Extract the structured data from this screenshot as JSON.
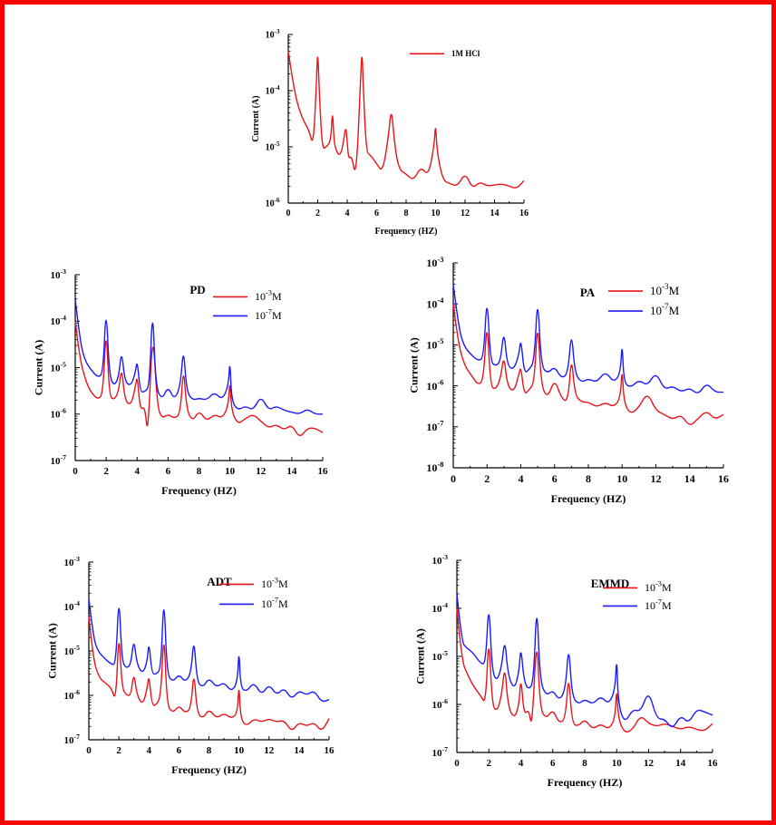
{
  "colors": {
    "frame": "#ff0000",
    "hcl": "#e8141a",
    "conc_high": "#e8141a",
    "conc_low": "#1a1aff"
  },
  "chart_data": [
    {
      "id": "blank",
      "type": "line",
      "title": "",
      "xlabel": "Frequency (HZ)",
      "ylabel": "Current (A)",
      "xlim": [
        0,
        16
      ],
      "xticks": [
        0,
        2,
        4,
        6,
        8,
        10,
        12,
        14,
        16
      ],
      "ylog": true,
      "ylim_exp": [
        -6,
        -3
      ],
      "legend_position": "top-right",
      "series": [
        {
          "name": "1M HCl",
          "color": "#e8141a",
          "x": [
            0,
            0.3,
            0.6,
            1,
            1.4,
            1.7,
            1.9,
            2,
            2.1,
            2.3,
            2.6,
            2.9,
            3,
            3.1,
            3.3,
            3.5,
            3.7,
            3.9,
            4,
            4.1,
            4.3,
            4.6,
            4.9,
            5,
            5.1,
            5.3,
            5.6,
            6,
            6.4,
            6.8,
            7,
            7.2,
            7.5,
            8,
            8.5,
            9,
            9.5,
            9.9,
            10,
            10.1,
            10.5,
            11,
            11.5,
            12,
            12.5,
            13,
            13.5,
            14,
            14.5,
            15,
            15.5,
            16
          ],
          "y": [
            0.0005,
            0.00015,
            6e-05,
            3e-05,
            2e-05,
            1e-05,
            0.00012,
            0.0006,
            0.0001,
            9e-06,
            1e-05,
            1.3e-05,
            5e-05,
            1.2e-05,
            8e-06,
            7e-06,
            1e-05,
            2.5e-05,
            1.2e-05,
            6e-06,
            7e-06,
            2.7e-06,
            0.00012,
            0.0006,
            0.0001,
            8e-06,
            7e-06,
            5e-06,
            3.5e-06,
            1.5e-05,
            5.3e-05,
            1.2e-05,
            4e-06,
            3.3e-06,
            2.5e-06,
            4.5e-06,
            3e-06,
            1e-05,
            2.8e-05,
            8e-06,
            2.5e-06,
            2.2e-06,
            2e-06,
            3.5e-06,
            1.8e-06,
            2.4e-06,
            2e-06,
            2.1e-06,
            2.2e-06,
            2e-06,
            1.8e-06,
            2.5e-06
          ]
        }
      ]
    },
    {
      "id": "pd",
      "type": "line",
      "title": "PD",
      "xlabel": "Frequency (HZ)",
      "ylabel": "Current (A)",
      "xlim": [
        0,
        16
      ],
      "xticks": [
        0,
        2,
        4,
        6,
        8,
        10,
        12,
        14,
        16
      ],
      "ylog": true,
      "ylim_exp": [
        -7,
        -3
      ],
      "legend_position": "top-right",
      "series": [
        {
          "name": "10^-3M",
          "color": "#e8141a",
          "x": [
            0,
            0.3,
            0.7,
            1,
            1.5,
            1.8,
            2,
            2.2,
            2.5,
            2.8,
            3,
            3.2,
            3.6,
            3.9,
            4,
            4.2,
            4.5,
            4.7,
            5,
            5.3,
            5.6,
            6,
            6.4,
            6.8,
            7,
            7.2,
            7.6,
            8,
            8.5,
            9,
            9.5,
            9.9,
            10,
            10.1,
            10.5,
            11,
            11.5,
            12,
            12.5,
            13,
            13.5,
            14,
            14.5,
            15,
            15.5,
            16
          ],
          "y": [
            0.0001,
            1.5e-05,
            5e-06,
            3e-06,
            2e-06,
            3e-06,
            9e-05,
            2.5e-06,
            2e-06,
            3e-06,
            1.1e-05,
            2e-06,
            1.5e-06,
            4e-06,
            7e-06,
            1.2e-06,
            1.5e-06,
            3e-07,
            9e-05,
            1.5e-06,
            8e-07,
            1e-06,
            8e-07,
            1e-06,
            1.2e-05,
            1.2e-06,
            7e-07,
            1.2e-06,
            7e-07,
            1e-06,
            8e-07,
            1.5e-06,
            6e-06,
            1.2e-06,
            6e-07,
            8e-07,
            1e-06,
            7e-07,
            5e-07,
            6e-07,
            4.5e-07,
            6e-07,
            3e-07,
            5e-07,
            5e-07,
            4e-07
          ]
        },
        {
          "name": "10^-7M",
          "color": "#1a1aff",
          "x": [
            0,
            0.3,
            0.6,
            1,
            1.5,
            1.8,
            2,
            2.2,
            2.5,
            2.8,
            3,
            3.2,
            3.6,
            3.9,
            4,
            4.2,
            4.5,
            4.8,
            5,
            5.2,
            5.6,
            6,
            6.4,
            6.8,
            7,
            7.2,
            7.6,
            8,
            8.5,
            9,
            9.5,
            9.9,
            10,
            10.1,
            10.5,
            11,
            11.5,
            12,
            12.5,
            13,
            13.5,
            14,
            14.5,
            15,
            15.5,
            16
          ],
          "y": [
            0.0003,
            4e-05,
            1.5e-05,
            9e-06,
            6e-06,
            8e-06,
            0.00025,
            7e-06,
            4e-06,
            6e-06,
            2.5e-05,
            5e-06,
            4e-06,
            8e-06,
            1.5e-05,
            3e-06,
            3e-06,
            4e-06,
            0.00026,
            4e-06,
            2e-06,
            4e-06,
            2e-06,
            4e-06,
            3e-05,
            3e-06,
            2e-06,
            2.2e-06,
            2e-06,
            3e-06,
            2e-06,
            4e-06,
            1.6e-05,
            2e-06,
            1.2e-06,
            1.5e-06,
            1.2e-06,
            2.5e-06,
            1.2e-06,
            1.5e-06,
            1.2e-06,
            1.1e-06,
            1e-06,
            1.3e-06,
            1e-06,
            1e-06
          ]
        }
      ]
    },
    {
      "id": "pa",
      "type": "line",
      "title": "PA",
      "xlabel": "Frequency (HZ)",
      "ylabel": "Current (A)",
      "xlim": [
        0,
        16
      ],
      "xticks": [
        0,
        2,
        4,
        6,
        8,
        10,
        12,
        14,
        16
      ],
      "ylog": true,
      "ylim_exp": [
        -8,
        -3
      ],
      "legend_position": "top-right",
      "series": [
        {
          "name": "10^-3M",
          "color": "#e8141a",
          "x": [
            0,
            0.3,
            0.7,
            1,
            1.5,
            1.8,
            2,
            2.2,
            2.5,
            2.8,
            3,
            3.2,
            3.6,
            3.9,
            4,
            4.2,
            4.5,
            4.8,
            5,
            5.2,
            5.6,
            6,
            6.4,
            6.8,
            7,
            7.2,
            7.6,
            8,
            8.5,
            9,
            9.5,
            9.9,
            10,
            10.1,
            10.5,
            11,
            11.5,
            12,
            12.5,
            13,
            13.5,
            14,
            14.5,
            15,
            15.5,
            16
          ],
          "y": [
            0.0001,
            1e-05,
            3e-06,
            2e-06,
            1e-06,
            1.5e-06,
            5e-05,
            1e-06,
            8e-07,
            1.5e-06,
            6e-06,
            1e-06,
            7e-07,
            2e-06,
            3e-06,
            6e-07,
            8e-07,
            1.2e-06,
            5e-05,
            1e-06,
            5e-07,
            1.5e-06,
            5e-07,
            4e-07,
            6e-06,
            6e-07,
            4e-07,
            4e-07,
            3e-07,
            4e-07,
            3e-07,
            5e-07,
            3e-06,
            4e-07,
            2e-07,
            3e-07,
            7e-07,
            2.5e-07,
            2e-07,
            1.5e-07,
            2e-07,
            1e-07,
            1.6e-07,
            2.5e-07,
            1.5e-07,
            2e-07
          ]
        },
        {
          "name": "10^-7M",
          "color": "#1a1aff",
          "x": [
            0,
            0.3,
            0.6,
            1,
            1.5,
            1.8,
            2,
            2.2,
            2.5,
            2.8,
            3,
            3.2,
            3.6,
            3.9,
            4,
            4.2,
            4.5,
            4.8,
            5,
            5.2,
            5.6,
            6,
            6.4,
            6.8,
            7,
            7.2,
            7.6,
            8,
            8.5,
            9,
            9.5,
            9.9,
            10,
            10.1,
            10.5,
            11,
            11.5,
            12,
            12.5,
            13,
            13.5,
            14,
            14.5,
            15,
            15.5,
            16
          ],
          "y": [
            0.0003,
            3e-05,
            1e-05,
            6e-06,
            4e-06,
            5e-06,
            0.0002,
            4e-06,
            3e-06,
            4e-06,
            2.5e-05,
            3e-06,
            2.5e-06,
            6e-06,
            1.5e-05,
            2e-06,
            2.5e-06,
            4e-06,
            0.0002,
            3e-06,
            2e-06,
            3e-06,
            1.5e-06,
            2e-06,
            2.5e-05,
            2e-06,
            1.2e-06,
            1.5e-06,
            1.2e-06,
            2.3e-06,
            1.2e-06,
            2e-06,
            1.3e-05,
            1.2e-06,
            9e-07,
            1.4e-06,
            1e-06,
            2.2e-06,
            8e-07,
            1e-06,
            7e-07,
            9e-07,
            6e-07,
            1.2e-06,
            7e-07,
            7e-07
          ]
        }
      ]
    },
    {
      "id": "adt",
      "type": "line",
      "title": "ADT",
      "xlabel": "Frequency (HZ)",
      "ylabel": "Current (A)",
      "xlim": [
        0,
        16
      ],
      "xticks": [
        0,
        2,
        4,
        6,
        8,
        10,
        12,
        14,
        16
      ],
      "ylog": true,
      "ylim_exp": [
        -7,
        -3
      ],
      "legend_position": "top-right",
      "series": [
        {
          "name": "10^-3M",
          "color": "#e8141a",
          "x": [
            0,
            0.3,
            0.7,
            1,
            1.5,
            1.8,
            2,
            2.2,
            2.5,
            2.8,
            3,
            3.2,
            3.6,
            3.9,
            4,
            4.2,
            4.5,
            4.8,
            5,
            5.2,
            5.6,
            6,
            6.4,
            6.8,
            7,
            7.2,
            7.6,
            8,
            8.5,
            9,
            9.5,
            9.9,
            10,
            10.1,
            10.5,
            11,
            11.5,
            12,
            12.5,
            13,
            13.5,
            14,
            14.5,
            15,
            15.5,
            16
          ],
          "y": [
            6e-05,
            6e-06,
            2.5e-06,
            2e-06,
            1.5e-06,
            7e-07,
            3.5e-05,
            1.5e-06,
            1e-06,
            1e-06,
            3.5e-06,
            1e-06,
            6e-07,
            1.5e-06,
            3e-06,
            6e-07,
            6e-07,
            1e-06,
            3.5e-05,
            6e-07,
            4e-07,
            6e-07,
            4e-07,
            5e-07,
            4e-06,
            4e-07,
            3e-07,
            5e-07,
            3e-07,
            4e-07,
            3e-07,
            4e-07,
            2e-06,
            3e-07,
            2e-07,
            3e-07,
            2.5e-07,
            3e-07,
            2.5e-07,
            2.8e-07,
            1.5e-07,
            2.5e-07,
            2e-07,
            2.5e-07,
            1.5e-07,
            3e-07
          ]
        },
        {
          "name": "10^-7M",
          "color": "#1a1aff",
          "x": [
            0,
            0.3,
            0.6,
            1,
            1.5,
            1.8,
            2,
            2.2,
            2.5,
            2.8,
            3,
            3.2,
            3.6,
            3.9,
            4,
            4.2,
            4.5,
            4.8,
            5,
            5.2,
            5.6,
            6,
            6.4,
            6.8,
            7,
            7.2,
            7.6,
            8,
            8.5,
            9,
            9.5,
            9.9,
            10,
            10.1,
            10.5,
            11,
            11.5,
            12,
            12.5,
            13,
            13.5,
            14,
            14.5,
            15,
            15.5,
            16
          ],
          "y": [
            0.00015,
            2e-05,
            1e-05,
            7e-06,
            5e-06,
            5e-06,
            0.00023,
            6e-06,
            4e-06,
            5e-06,
            2e-05,
            5e-06,
            3e-06,
            6e-06,
            1.7e-05,
            3e-06,
            3e-06,
            4e-06,
            0.00024,
            3e-06,
            2e-06,
            3e-06,
            2e-06,
            3e-06,
            2.2e-05,
            2e-06,
            1.5e-06,
            2.5e-06,
            1.5e-06,
            2e-06,
            1.2e-06,
            2e-06,
            1.2e-05,
            1.5e-06,
            1.2e-06,
            2e-06,
            1e-06,
            1.8e-06,
            1e-06,
            1.5e-06,
            8e-07,
            1.3e-06,
            1e-06,
            1.3e-06,
            7e-07,
            8e-07
          ]
        }
      ]
    },
    {
      "id": "emmd",
      "type": "line",
      "title": "EMMD",
      "xlabel": "Frequency (HZ)",
      "ylabel": "Current (A)",
      "xlim": [
        0,
        16
      ],
      "xticks": [
        0,
        2,
        4,
        6,
        8,
        10,
        12,
        14,
        16
      ],
      "ylog": true,
      "ylim_exp": [
        -7,
        -3
      ],
      "legend_position": "top-right",
      "series": [
        {
          "name": "10^-3M",
          "color": "#e8141a",
          "x": [
            0,
            0.3,
            0.7,
            1,
            1.5,
            1.8,
            2,
            2.2,
            2.5,
            2.8,
            3,
            3.2,
            3.6,
            3.9,
            4,
            4.2,
            4.5,
            4.7,
            5,
            5.2,
            5.6,
            6,
            6.4,
            6.8,
            7,
            7.2,
            7.6,
            8,
            8.5,
            9,
            9.5,
            9.9,
            10,
            10.1,
            10.5,
            11,
            11.5,
            12,
            12.5,
            13,
            13.5,
            14,
            14.5,
            15,
            15.5,
            16
          ],
          "y": [
            0.0001,
            8e-06,
            4e-06,
            2.5e-06,
            1.5e-06,
            1e-06,
            3.5e-05,
            1e-06,
            7e-07,
            1.5e-06,
            7e-06,
            9e-07,
            5e-07,
            1e-06,
            4e-06,
            6e-07,
            8e-07,
            3e-07,
            3.5e-05,
            8e-07,
            5e-07,
            8e-07,
            4e-07,
            5e-07,
            5e-06,
            4e-07,
            3.5e-07,
            5e-07,
            3e-07,
            4e-07,
            3e-07,
            5e-07,
            2.5e-06,
            5e-07,
            2.5e-07,
            3e-07,
            6e-07,
            4e-07,
            3.5e-07,
            4e-07,
            3.5e-07,
            3e-07,
            3.5e-07,
            3e-07,
            2.8e-07,
            4e-07
          ]
        },
        {
          "name": "10^-7M",
          "color": "#1a1aff",
          "x": [
            0,
            0.3,
            0.6,
            1,
            1.5,
            1.8,
            2,
            2.2,
            2.5,
            2.8,
            3,
            3.2,
            3.6,
            3.9,
            4,
            4.2,
            4.5,
            4.8,
            5,
            5.2,
            5.6,
            6,
            6.4,
            6.8,
            7,
            7.2,
            7.6,
            8,
            8.5,
            9,
            9.5,
            9.9,
            10,
            10.1,
            10.5,
            11,
            11.5,
            12,
            12.5,
            13,
            13.5,
            14,
            14.5,
            15,
            15.5,
            16
          ],
          "y": [
            0.0002,
            2e-05,
            1.5e-05,
            1.2e-05,
            7e-06,
            7e-06,
            0.00017,
            5e-06,
            3e-06,
            6e-06,
            2.5e-05,
            4e-06,
            2e-06,
            5e-06,
            1.7e-05,
            3e-06,
            2e-06,
            3e-06,
            0.00017,
            3e-06,
            1.5e-06,
            2e-06,
            1.2e-06,
            2e-06,
            2e-05,
            1.5e-06,
            1e-06,
            1.3e-06,
            1e-06,
            1.5e-06,
            1e-06,
            2e-06,
            1.1e-05,
            1e-06,
            4e-07,
            8e-07,
            7e-07,
            2e-06,
            5e-07,
            5e-07,
            3e-07,
            6e-07,
            4e-07,
            8e-07,
            7e-07,
            6e-07
          ]
        }
      ]
    }
  ]
}
